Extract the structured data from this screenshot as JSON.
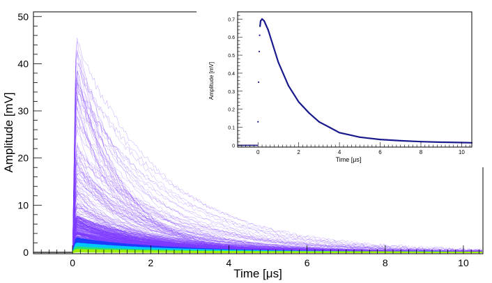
{
  "chart_data": [
    {
      "type": "scatter",
      "title": "",
      "description": "Overlaid pulse waveforms (density-coloured persistence plot)",
      "xlabel": "Time [μs]",
      "ylabel": "Amplitude [mV]",
      "xlim": [
        -1.0,
        10.5
      ],
      "ylim": [
        -0.3,
        51
      ],
      "xticks": [
        "0",
        "2",
        "4",
        "6",
        "8",
        "10"
      ],
      "yticks": [
        "0",
        "10",
        "20",
        "30",
        "40",
        "50"
      ],
      "max_amplitude": 47,
      "pulse_onset": 0.0,
      "peak_time": 0.1,
      "density_colors": [
        "#7d3cff",
        "#1e3cff",
        "#00c8ff",
        "#28e07a",
        "#9cf000"
      ]
    },
    {
      "type": "scatter",
      "title": "",
      "description": "Inset: averaged pulse waveform",
      "xlabel": "Time [μs]",
      "ylabel": "Amplitude [mV]",
      "xlim": [
        -1.0,
        10.5
      ],
      "ylim": [
        -0.01,
        0.74
      ],
      "xticks": [
        "0",
        "2",
        "4",
        "6",
        "8",
        "10"
      ],
      "yticks": [
        "0",
        "0.1",
        "0.2",
        "0.3",
        "0.4",
        "0.5",
        "0.6",
        "0.7"
      ],
      "points": [
        {
          "x": -1.0,
          "y": 0.0
        },
        {
          "x": 0.0,
          "y": 0.13
        },
        {
          "x": 0.03,
          "y": 0.35
        },
        {
          "x": 0.06,
          "y": 0.52
        },
        {
          "x": 0.08,
          "y": 0.61
        },
        {
          "x": 0.1,
          "y": 0.66
        },
        {
          "x": 0.13,
          "y": 0.69
        },
        {
          "x": 0.2,
          "y": 0.7
        },
        {
          "x": 0.3,
          "y": 0.69
        },
        {
          "x": 0.5,
          "y": 0.64
        },
        {
          "x": 1.0,
          "y": 0.46
        },
        {
          "x": 1.5,
          "y": 0.33
        },
        {
          "x": 2.0,
          "y": 0.24
        },
        {
          "x": 2.5,
          "y": 0.18
        },
        {
          "x": 3.0,
          "y": 0.13
        },
        {
          "x": 3.5,
          "y": 0.1
        },
        {
          "x": 4.0,
          "y": 0.07
        },
        {
          "x": 5.0,
          "y": 0.045
        },
        {
          "x": 6.0,
          "y": 0.032
        },
        {
          "x": 7.0,
          "y": 0.025
        },
        {
          "x": 8.0,
          "y": 0.02
        },
        {
          "x": 9.0,
          "y": 0.017
        },
        {
          "x": 10.0,
          "y": 0.015
        },
        {
          "x": 10.5,
          "y": 0.014
        }
      ],
      "line_color": "#1a1a8c"
    }
  ]
}
